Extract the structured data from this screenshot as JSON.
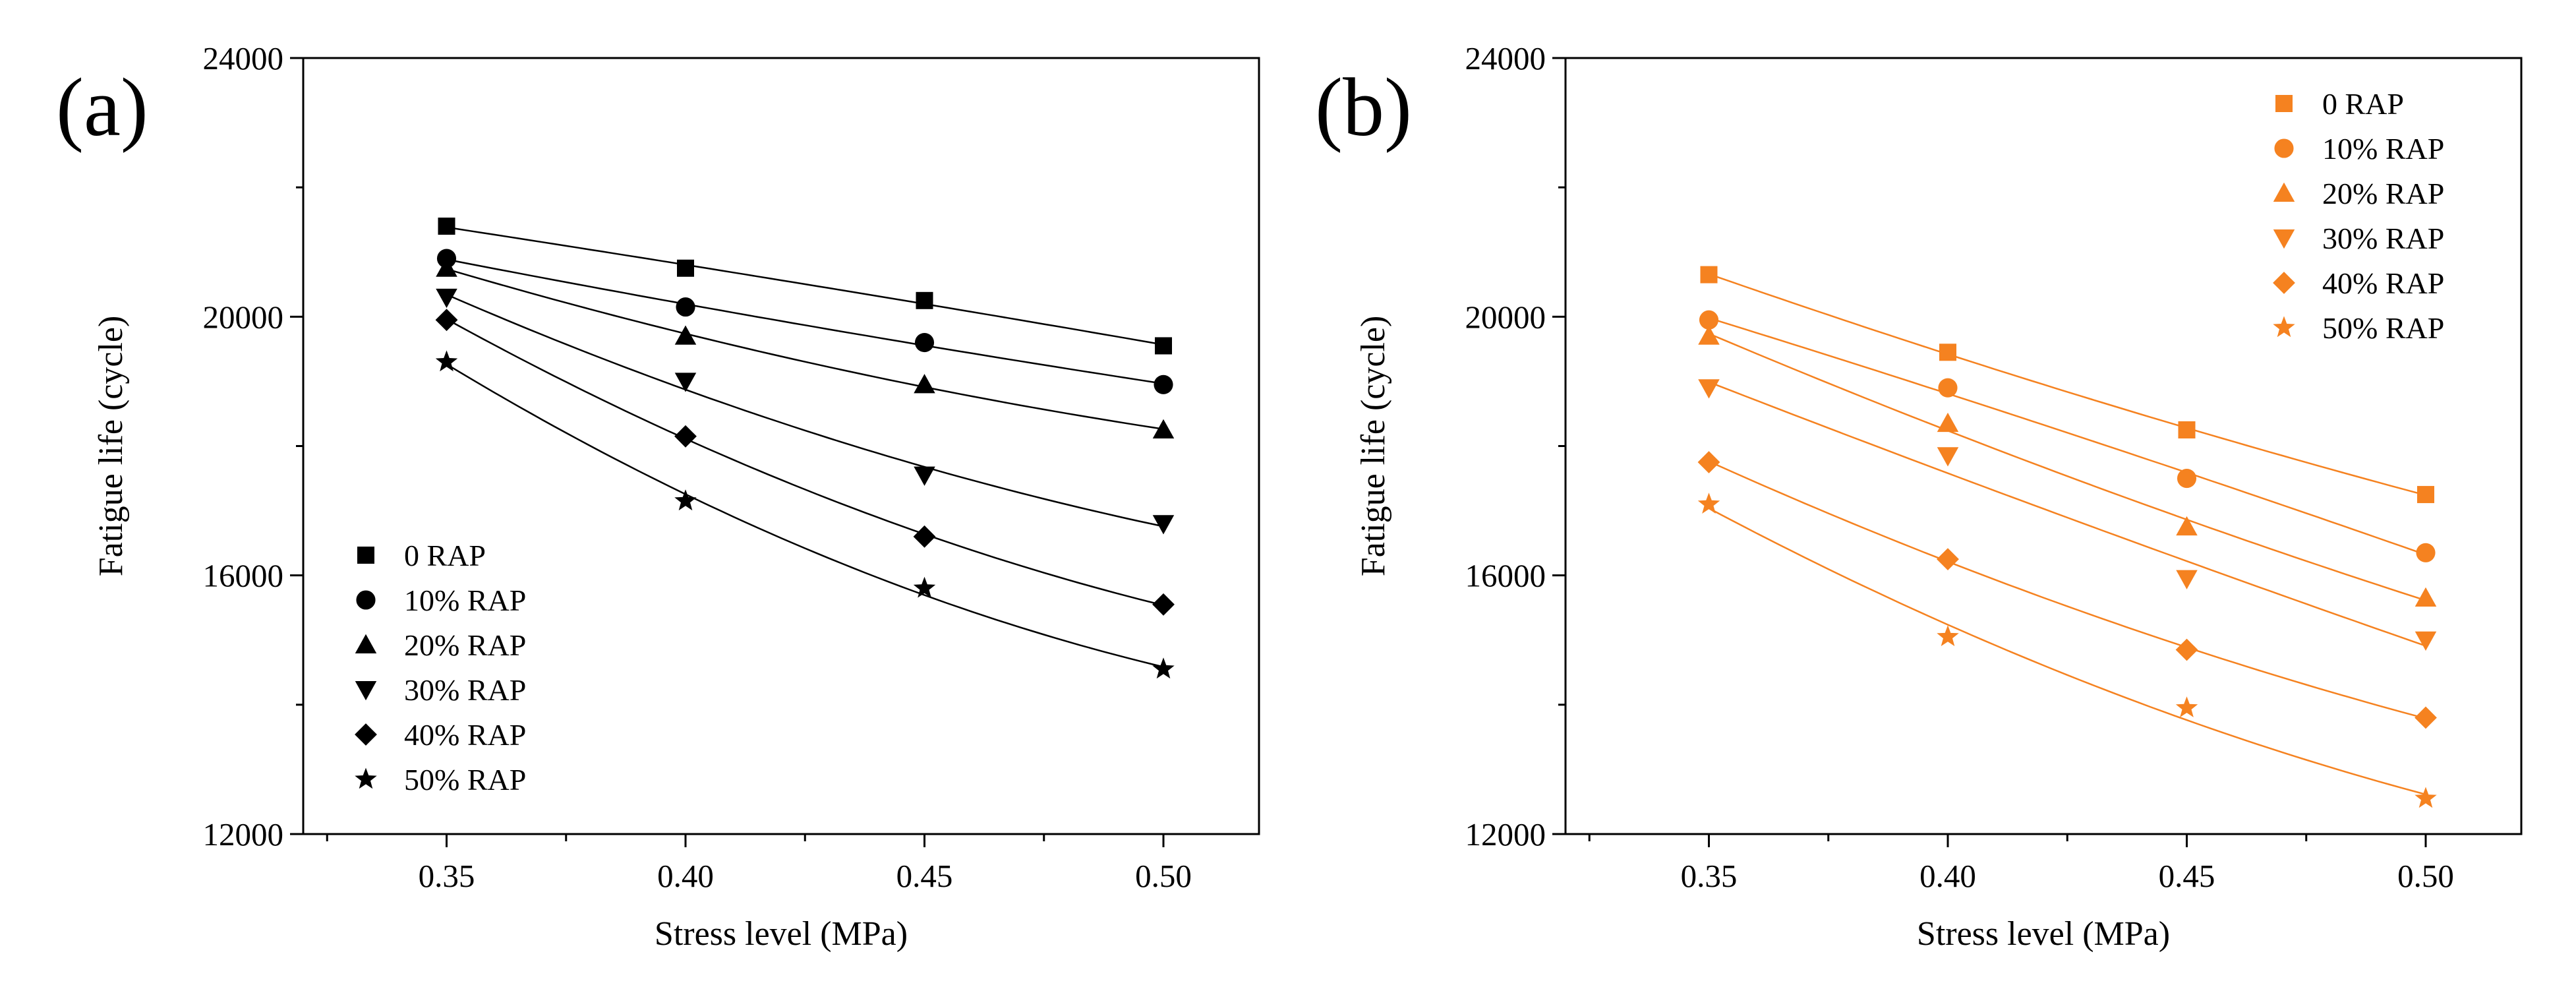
{
  "chart_data": [
    {
      "type": "scatter",
      "panel_label": "(a)",
      "xlabel": "Stress level (MPa)",
      "ylabel": "Fatigue life (cycle)",
      "xlim": [
        0.32,
        0.52
      ],
      "ylim": [
        12000,
        24000
      ],
      "x_ticks": [
        0.35,
        0.4,
        0.45,
        0.5
      ],
      "x_tick_labels": [
        "0.35",
        "0.40",
        "0.45",
        "0.50"
      ],
      "y_ticks": [
        12000,
        16000,
        20000,
        24000
      ],
      "y_tick_labels": [
        "12000",
        "16000",
        "20000",
        "24000"
      ],
      "color": "#000000",
      "fitted_curves": true,
      "legend_position": "bottom-left",
      "x": [
        0.35,
        0.4,
        0.45,
        0.5
      ],
      "series": [
        {
          "name": "0 RAP",
          "marker": "square",
          "values": [
            21400,
            20750,
            20250,
            19550
          ]
        },
        {
          "name": "10% RAP",
          "marker": "circle",
          "values": [
            20900,
            20150,
            19600,
            18950
          ]
        },
        {
          "name": "20% RAP",
          "marker": "triangle-up",
          "values": [
            20750,
            19700,
            18950,
            18250
          ]
        },
        {
          "name": "30% RAP",
          "marker": "triangle-down",
          "values": [
            20300,
            19000,
            17550,
            16800
          ]
        },
        {
          "name": "40% RAP",
          "marker": "diamond",
          "values": [
            19950,
            18150,
            16600,
            15550
          ]
        },
        {
          "name": "50% RAP",
          "marker": "star",
          "values": [
            19300,
            17150,
            15800,
            14550
          ]
        }
      ]
    },
    {
      "type": "scatter",
      "panel_label": "(b)",
      "xlabel": "Stress level (MPa)",
      "ylabel": "Fatigue life (cycle)",
      "xlim": [
        0.32,
        0.52
      ],
      "ylim": [
        12000,
        24000
      ],
      "x_ticks": [
        0.35,
        0.4,
        0.45,
        0.5
      ],
      "x_tick_labels": [
        "0.35",
        "0.40",
        "0.45",
        "0.50"
      ],
      "y_ticks": [
        12000,
        16000,
        20000,
        24000
      ],
      "y_tick_labels": [
        "12000",
        "16000",
        "20000",
        "24000"
      ],
      "color": "#f58220",
      "fitted_curves": true,
      "legend_position": "top-right",
      "x": [
        0.35,
        0.4,
        0.45,
        0.5
      ],
      "series": [
        {
          "name": "0 RAP",
          "marker": "square",
          "values": [
            20650,
            19450,
            18250,
            17250
          ]
        },
        {
          "name": "10% RAP",
          "marker": "circle",
          "values": [
            19950,
            18900,
            17500,
            16350
          ]
        },
        {
          "name": "20% RAP",
          "marker": "triangle-up",
          "values": [
            19700,
            18350,
            16750,
            15650
          ]
        },
        {
          "name": "30% RAP",
          "marker": "triangle-down",
          "values": [
            18900,
            17850,
            15950,
            15000
          ]
        },
        {
          "name": "40% RAP",
          "marker": "diamond",
          "values": [
            17750,
            16250,
            14850,
            13800
          ]
        },
        {
          "name": "50% RAP",
          "marker": "star",
          "values": [
            17100,
            15050,
            13950,
            12550
          ]
        }
      ]
    }
  ]
}
